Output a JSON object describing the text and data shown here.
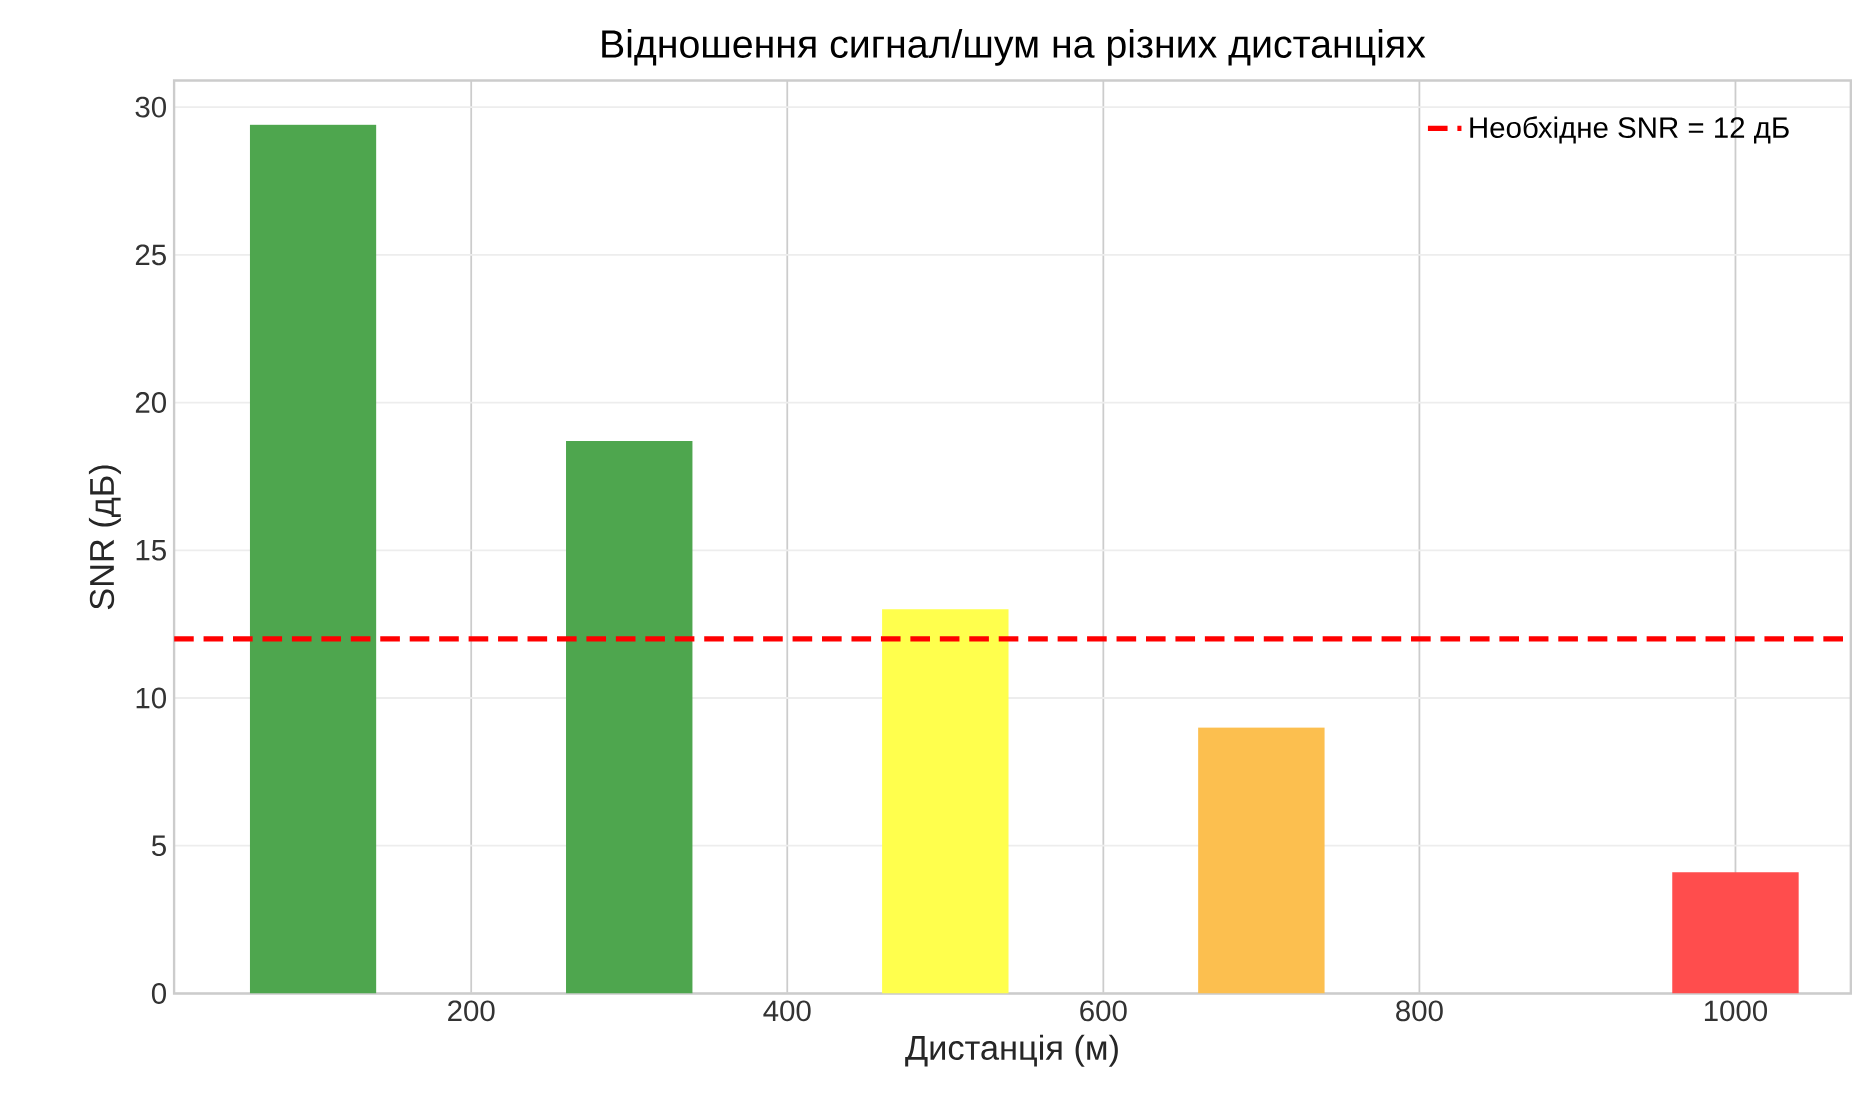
{
  "chart_data": {
    "type": "bar",
    "title": "Відношення сигнал/шум на різних дистанціях",
    "xlabel": "Дистанція (м)",
    "ylabel": "SNR (дБ)",
    "x": [
      100,
      300,
      500,
      700,
      1000
    ],
    "values": [
      29.4,
      18.7,
      13.0,
      9.0,
      4.1
    ],
    "colors": [
      "#4ea64e",
      "#4ea64e",
      "#ffff4d",
      "#fcbf4f",
      "#ff4d4d"
    ],
    "xlim": [
      12,
      1073
    ],
    "ylim": [
      0,
      30.9
    ],
    "xticks": [
      200,
      400,
      600,
      800,
      1000
    ],
    "yticks": [
      0,
      5,
      10,
      15,
      20,
      25,
      30
    ],
    "grid": true,
    "legend": "top right",
    "ref_lines": [
      {
        "axis": "y",
        "value": 12,
        "label": "Необхідне SNR = 12 дБ",
        "color": "#ff0000",
        "line_style": "dashed"
      }
    ]
  }
}
